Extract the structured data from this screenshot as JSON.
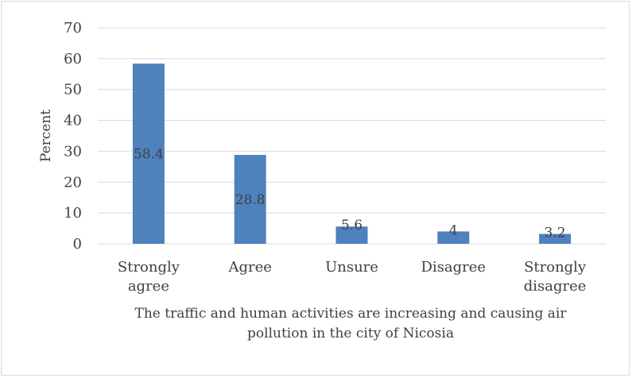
{
  "chart_data": {
    "type": "bar",
    "categories": [
      [
        "Strongly",
        "agree"
      ],
      [
        "Agree"
      ],
      [
        "Unsure"
      ],
      [
        "Disagree"
      ],
      [
        "Strongly",
        "disagree"
      ]
    ],
    "values": [
      58.4,
      28.8,
      5.6,
      4,
      3.2
    ],
    "data_labels": [
      "58.4",
      "28.8",
      "5.6",
      "4",
      "3.2"
    ],
    "title": "",
    "xlabel": [
      "The traffic and human activities are increasing and causing air",
      "pollution in the city of Nicosia"
    ],
    "ylabel": "Percent",
    "ylim": [
      0,
      70
    ],
    "yticks": [
      0,
      10,
      20,
      30,
      40,
      50,
      60,
      70
    ],
    "grid": true,
    "legend": "none",
    "bar_color": "#4f81bd",
    "grid_color": "#d9d9d9"
  }
}
